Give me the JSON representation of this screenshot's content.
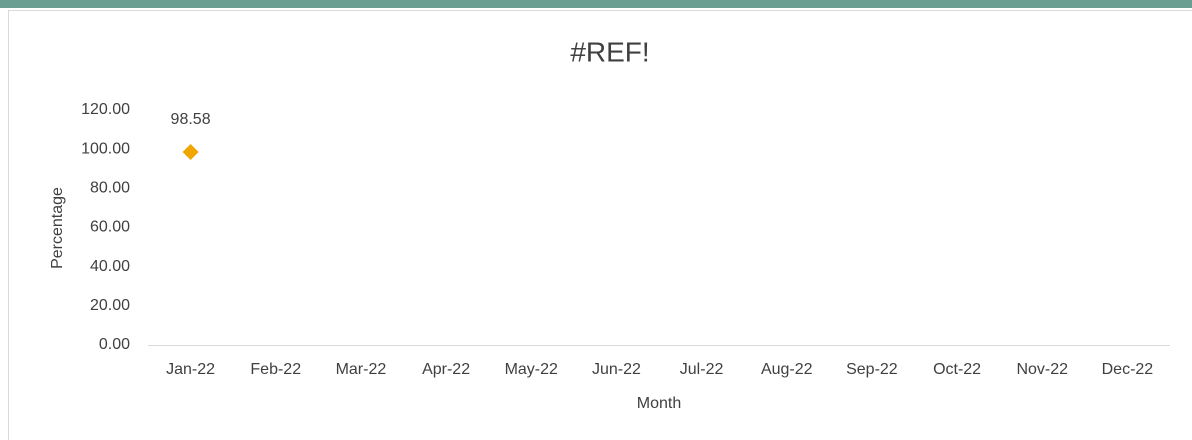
{
  "chart_data": {
    "type": "line",
    "title": "#REF!",
    "x_label": "Month",
    "y_label": "Percentage",
    "categories": [
      "Jan-22",
      "Feb-22",
      "Mar-22",
      "Apr-22",
      "May-22",
      "Jun-22",
      "Jul-22",
      "Aug-22",
      "Sep-22",
      "Oct-22",
      "Nov-22",
      "Dec-22"
    ],
    "series": [
      {
        "name": "Percentage",
        "color": "#f0a500",
        "marker": "diamond",
        "data_labels": true,
        "values": [
          98.58,
          null,
          null,
          null,
          null,
          null,
          null,
          null,
          null,
          null,
          null,
          null
        ]
      }
    ],
    "ylim": [
      0,
      120
    ],
    "yticks": [
      {
        "value": 0,
        "label": "0.00"
      },
      {
        "value": 20,
        "label": "20.00"
      },
      {
        "value": 40,
        "label": "40.00"
      },
      {
        "value": 60,
        "label": "60.00"
      },
      {
        "value": 80,
        "label": "80.00"
      },
      {
        "value": 100,
        "label": "100.00"
      },
      {
        "value": 120,
        "label": "120.00"
      }
    ],
    "grid": false,
    "legend": false
  }
}
